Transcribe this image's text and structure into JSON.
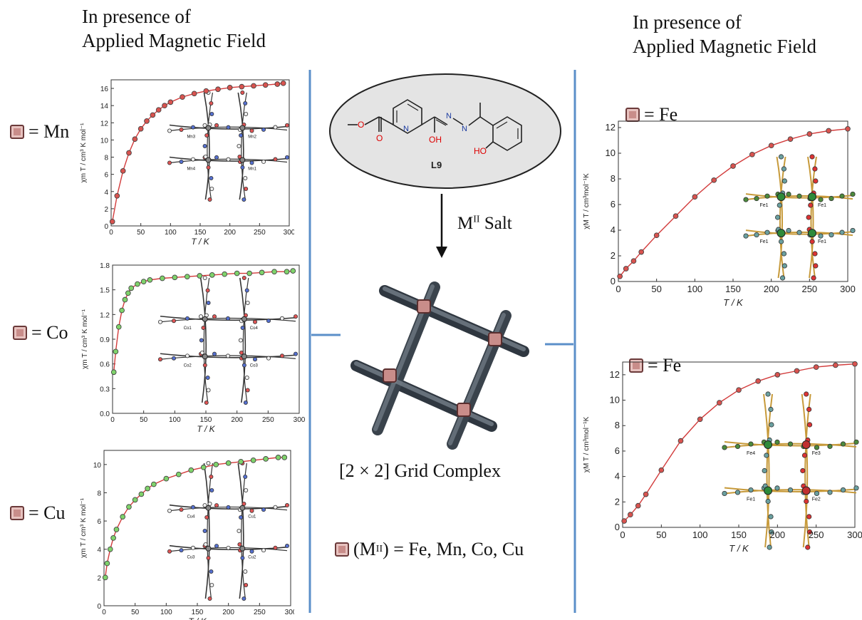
{
  "left": {
    "heading_line1": "In presence of",
    "heading_line2": "Applied Magnetic Field",
    "labels": [
      "= Mn",
      "= Co",
      "= Cu"
    ]
  },
  "right": {
    "heading_line1": "In presence of",
    "heading_line2": "Applied Magnetic Field",
    "labels": [
      "= Fe",
      "= Fe"
    ]
  },
  "center": {
    "ligand_label": "L9",
    "ligand_atoms": {
      "N": "N",
      "OH": "OH",
      "HO": "HO",
      "O": "O"
    },
    "arrow_label_main": "M",
    "arrow_label_sup": "II",
    "arrow_label_rest": " Salt",
    "grid_label": "[2 × 2] Grid Complex",
    "legend_pre": "(M",
    "legend_sup": "II",
    "legend_post": ") = Fe, Mn, Co, Cu"
  },
  "colors": {
    "divider": "#5b8fc9",
    "marker_red": "#d9534f",
    "marker_green": "#7fd36b",
    "bar": "#5e6a76"
  },
  "chart_data": [
    {
      "type": "scatter",
      "id": "mn",
      "ylabel": "χm T / cm³ K mol⁻¹",
      "xlabel": "T / K",
      "xlim": [
        0,
        300
      ],
      "ylim": [
        0,
        17
      ],
      "xticks": [
        "0",
        "50",
        "100",
        "150",
        "200",
        "250",
        "300"
      ],
      "yticks": [
        "0",
        "2",
        "4",
        "6",
        "8",
        "10",
        "12",
        "14",
        "16"
      ],
      "inset_labels": [
        "Mn3",
        "Mn2",
        "Mn4",
        "Mn1"
      ],
      "x": [
        2,
        10,
        20,
        30,
        40,
        50,
        60,
        70,
        80,
        90,
        100,
        120,
        140,
        160,
        180,
        200,
        220,
        240,
        260,
        280,
        290
      ],
      "y": [
        0.5,
        3.5,
        6.4,
        8.5,
        10.1,
        11.3,
        12.2,
        12.9,
        13.5,
        14.0,
        14.4,
        15.0,
        15.4,
        15.7,
        15.9,
        16.1,
        16.2,
        16.3,
        16.4,
        16.5,
        16.6
      ]
    },
    {
      "type": "scatter",
      "id": "co",
      "ylabel": "χm T / cm³ K mol⁻¹",
      "xlabel": "T / K",
      "xlim": [
        0,
        300
      ],
      "ylim": [
        0,
        1.8
      ],
      "xticks": [
        "0",
        "50",
        "100",
        "150",
        "200",
        "250",
        "300"
      ],
      "yticks": [
        "0.0",
        "0.3",
        "0.6",
        "0.9",
        "1.2",
        "1.5",
        "1.8"
      ],
      "inset_labels": [
        "Co1",
        "Co4",
        "Co2",
        "Co3"
      ],
      "x": [
        2,
        5,
        10,
        15,
        20,
        25,
        30,
        40,
        50,
        60,
        80,
        100,
        120,
        140,
        160,
        180,
        200,
        220,
        240,
        260,
        280,
        290
      ],
      "y": [
        0.5,
        0.75,
        1.05,
        1.25,
        1.38,
        1.46,
        1.52,
        1.57,
        1.6,
        1.62,
        1.64,
        1.65,
        1.66,
        1.67,
        1.68,
        1.69,
        1.7,
        1.7,
        1.71,
        1.72,
        1.72,
        1.73
      ]
    },
    {
      "type": "scatter",
      "id": "cu",
      "ylabel": "χm T / cm³ K mol⁻¹",
      "xlabel": "T / K",
      "xlim": [
        0,
        300
      ],
      "ylim": [
        0,
        11
      ],
      "xticks": [
        "0",
        "50",
        "100",
        "150",
        "200",
        "250",
        "300"
      ],
      "yticks": [
        "0",
        "2",
        "4",
        "6",
        "8",
        "10"
      ],
      "inset_labels": [
        "Cu4",
        "Cu1",
        "Cu3",
        "Cu2"
      ],
      "x": [
        2,
        5,
        10,
        15,
        20,
        30,
        40,
        50,
        60,
        70,
        80,
        100,
        120,
        140,
        160,
        180,
        200,
        220,
        240,
        260,
        280,
        290
      ],
      "y": [
        2.0,
        3.0,
        4.0,
        4.8,
        5.4,
        6.3,
        7.0,
        7.5,
        7.9,
        8.3,
        8.6,
        9.0,
        9.3,
        9.6,
        9.8,
        10.0,
        10.1,
        10.2,
        10.3,
        10.4,
        10.5,
        10.5
      ]
    },
    {
      "type": "scatter",
      "id": "fe1",
      "ylabel": "χM T  /  cm³mol⁻¹K",
      "xlabel": "T  /  K",
      "xlim": [
        0,
        300
      ],
      "ylim": [
        0,
        12.5
      ],
      "xticks": [
        "0",
        "50",
        "100",
        "150",
        "200",
        "250",
        "300"
      ],
      "yticks": [
        "0",
        "2",
        "4",
        "6",
        "8",
        "10",
        "12"
      ],
      "inset_labels": [
        "Fe1",
        "Fe1",
        "Fe1",
        "Fe1"
      ],
      "x": [
        2,
        10,
        20,
        30,
        50,
        75,
        100,
        125,
        150,
        175,
        200,
        225,
        250,
        275,
        300
      ],
      "y": [
        0.4,
        1.0,
        1.6,
        2.3,
        3.6,
        5.1,
        6.6,
        7.9,
        9.0,
        9.9,
        10.6,
        11.1,
        11.5,
        11.75,
        11.9
      ]
    },
    {
      "type": "scatter",
      "id": "fe2",
      "ylabel": "χM T  /  cm³mol⁻¹K",
      "xlabel": "T  /  K",
      "xlim": [
        0,
        300
      ],
      "ylim": [
        0,
        13
      ],
      "xticks": [
        "0",
        "50",
        "100",
        "150",
        "200",
        "250",
        "300"
      ],
      "yticks": [
        "0",
        "2",
        "4",
        "6",
        "8",
        "10",
        "12"
      ],
      "inset_labels": [
        "Fe4",
        "Fe3",
        "Fe1",
        "Fe2"
      ],
      "x": [
        2,
        10,
        20,
        30,
        50,
        75,
        100,
        125,
        150,
        175,
        200,
        225,
        250,
        275,
        300
      ],
      "y": [
        0.5,
        1.0,
        1.7,
        2.6,
        4.5,
        6.8,
        8.5,
        9.8,
        10.8,
        11.5,
        12.0,
        12.3,
        12.6,
        12.75,
        12.85
      ]
    }
  ]
}
